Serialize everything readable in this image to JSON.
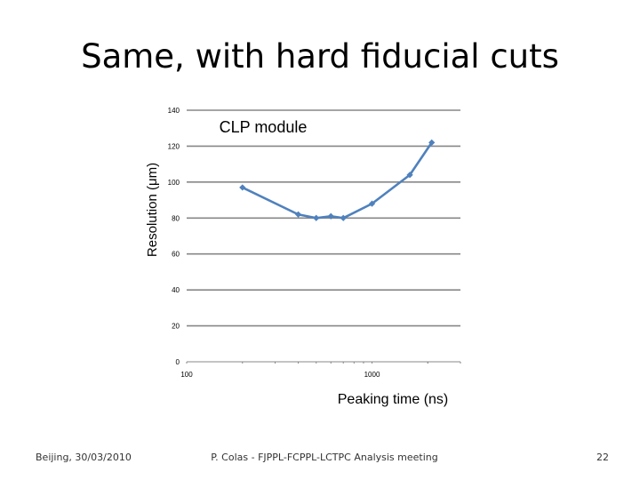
{
  "slide": {
    "title": "Same, with hard fiducial cuts"
  },
  "footer": {
    "left": "Beijing, 30/03/2010",
    "center": "P. Colas  -  FJPPL-FCPPL-LCTPC Analysis meeting",
    "page": "22"
  },
  "chart_data": {
    "type": "line",
    "title": "CLP module",
    "xlabel": "Peaking time (ns)",
    "ylabel": "Resolution (μm)",
    "xscale": "log",
    "xlim": [
      100,
      3000
    ],
    "ylim": [
      0,
      140
    ],
    "yticks": [
      0,
      20,
      40,
      60,
      80,
      100,
      120,
      140
    ],
    "xtick_labels": [
      {
        "value": 100,
        "label": "100"
      },
      {
        "value": 1000,
        "label": "1000"
      }
    ],
    "grid": "horizontal",
    "series": [
      {
        "color": "#4f81bd",
        "x": [
          200,
          400,
          500,
          600,
          700,
          1000,
          1600,
          2100
        ],
        "y": [
          97,
          82,
          80,
          81,
          80,
          88,
          104,
          122
        ]
      }
    ]
  }
}
